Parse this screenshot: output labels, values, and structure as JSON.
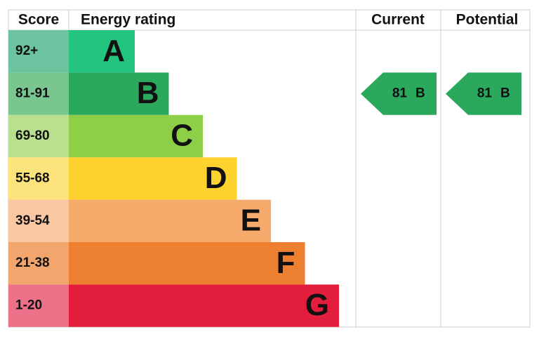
{
  "headers": {
    "score": "Score",
    "rating": "Energy rating",
    "current": "Current",
    "potential": "Potential"
  },
  "rows": [
    {
      "score": "92+",
      "band": "A",
      "color": "#22c47e",
      "score_color": "#6dc3a0"
    },
    {
      "score": "81-91",
      "band": "B",
      "color": "#2aa85b",
      "score_color": "#79c690"
    },
    {
      "score": "69-80",
      "band": "C",
      "color": "#8ecf48",
      "score_color": "#b9e08e"
    },
    {
      "score": "55-68",
      "band": "D",
      "color": "#fdd22e",
      "score_color": "#fde37c"
    },
    {
      "score": "39-54",
      "band": "E",
      "color": "#f6aa6c",
      "score_color": "#f9c8a2"
    },
    {
      "score": "21-38",
      "band": "F",
      "color": "#ec7f30",
      "score_color": "#f2a66e"
    },
    {
      "score": "1-20",
      "band": "G",
      "color": "#e31d3c",
      "score_color": "#ec7087"
    }
  ],
  "current": {
    "score": 81,
    "band": "B",
    "color": "#2aa85b"
  },
  "potential": {
    "score": 81,
    "band": "B",
    "color": "#2aa85b"
  }
}
